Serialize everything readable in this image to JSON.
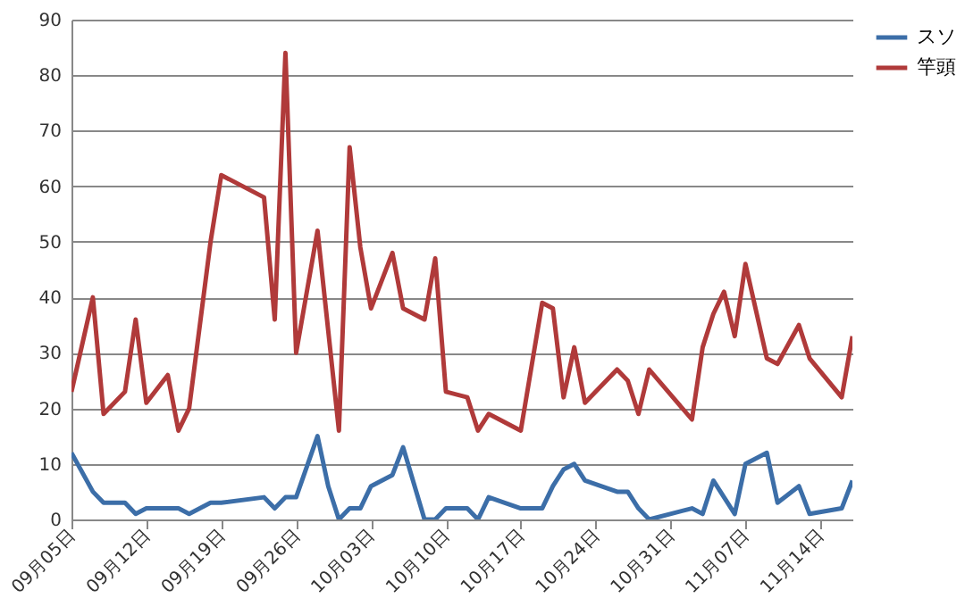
{
  "chart_data": {
    "type": "line",
    "x": [
      "--09-05",
      "--09-07",
      "--09-08",
      "--09-10",
      "--09-11",
      "--09-12",
      "--09-14",
      "--09-15",
      "--09-16",
      "--09-18",
      "--09-19",
      "--09-23",
      "--09-24",
      "--09-25",
      "--09-26",
      "--09-28",
      "--09-29",
      "--09-30",
      "--10-01",
      "--10-02",
      "--10-03",
      "--10-05",
      "--10-06",
      "--10-08",
      "--10-09",
      "--10-10",
      "--10-12",
      "--10-13",
      "--10-14",
      "--10-17",
      "--10-19",
      "--10-20",
      "--10-21",
      "--10-22",
      "--10-23",
      "--10-26",
      "--10-27",
      "--10-28",
      "--10-29",
      "--11-02",
      "--11-03",
      "--11-04",
      "--11-05",
      "--11-06",
      "--11-07",
      "--11-09",
      "--11-10",
      "--11-12",
      "--11-13",
      "--11-16",
      "--11-17"
    ],
    "series": [
      {
        "name": "スソ",
        "color": "#3c6ea8",
        "values": [
          12,
          5,
          3,
          3,
          1,
          2,
          2,
          2,
          1,
          3,
          3,
          4,
          2,
          4,
          4,
          15,
          6,
          0,
          2,
          2,
          6,
          8,
          13,
          0,
          0,
          2,
          2,
          0,
          4,
          2,
          2,
          6,
          9,
          10,
          7,
          5,
          5,
          2,
          0,
          2,
          1,
          7,
          4,
          1,
          10,
          12,
          3,
          6,
          1,
          2,
          7
        ]
      },
      {
        "name": "竿頭",
        "color": "#b03a3a",
        "values": [
          23,
          40,
          19,
          23,
          36,
          21,
          26,
          16,
          20,
          50,
          62,
          58,
          36,
          84,
          30,
          52,
          34,
          16,
          67,
          49,
          38,
          48,
          38,
          36,
          47,
          23,
          22,
          16,
          19,
          16,
          39,
          38,
          22,
          31,
          21,
          27,
          25,
          19,
          27,
          18,
          31,
          37,
          41,
          33,
          46,
          29,
          28,
          35,
          29,
          22,
          33
        ]
      }
    ],
    "xlim": [
      "--09-05",
      "--11-17"
    ],
    "xticks": [
      {
        "value": "--09-05",
        "label": "09月05日"
      },
      {
        "value": "--09-12",
        "label": "09月12日"
      },
      {
        "value": "--09-19",
        "label": "09月19日"
      },
      {
        "value": "--09-26",
        "label": "09月26日"
      },
      {
        "value": "--10-03",
        "label": "10月03日"
      },
      {
        "value": "--10-10",
        "label": "10月10日"
      },
      {
        "value": "--10-17",
        "label": "10月17日"
      },
      {
        "value": "--10-24",
        "label": "10月24日"
      },
      {
        "value": "--10-31",
        "label": "10月31日"
      },
      {
        "value": "--11-07",
        "label": "11月07日"
      },
      {
        "value": "--11-14",
        "label": "11月14日"
      }
    ],
    "ylim": [
      0,
      90
    ],
    "yticks": [
      0,
      10,
      20,
      30,
      40,
      50,
      60,
      70,
      80,
      90
    ],
    "grid": "y",
    "legend": "right",
    "line_style": "solid",
    "marker": "none"
  }
}
